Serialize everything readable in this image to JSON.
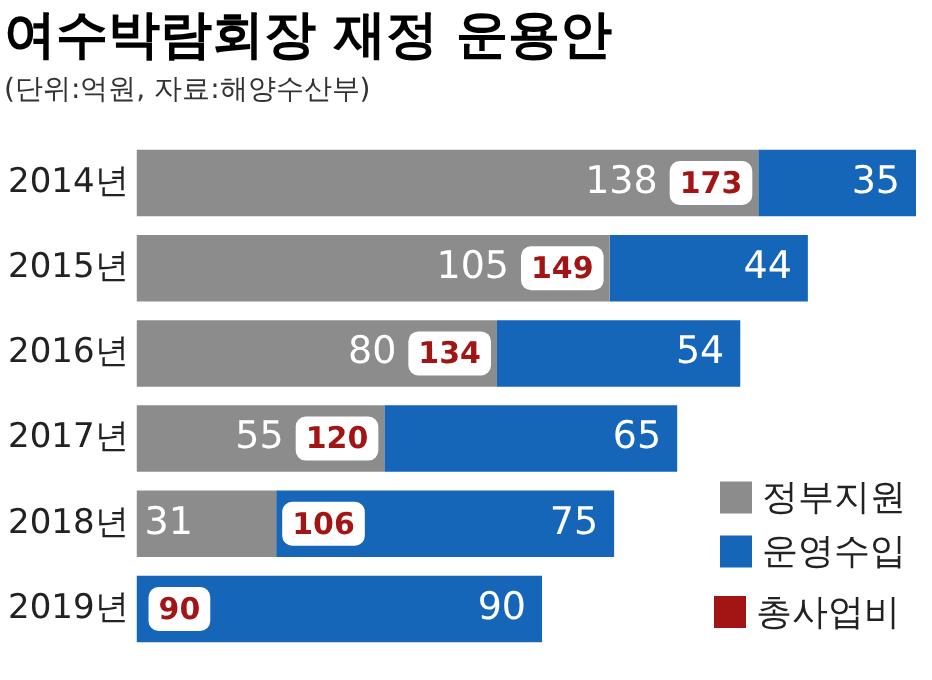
{
  "chart_data": {
    "type": "bar",
    "orientation": "horizontal",
    "stacked": true,
    "title": "여수박람회장 재정 운용안",
    "subtitle": "(단위:억원, 자료:해양수산부)",
    "categories": [
      "2014년",
      "2015년",
      "2016년",
      "2017년",
      "2018년",
      "2019년"
    ],
    "series": [
      {
        "name": "정부지원",
        "color": "#8c8c8c",
        "values": [
          138,
          105,
          80,
          55,
          31,
          null
        ]
      },
      {
        "name": "운영수입",
        "color": "#1565b8",
        "values": [
          35,
          44,
          54,
          65,
          75,
          90
        ]
      }
    ],
    "totals": [
      "173",
      "149",
      "134",
      "120",
      "106",
      "90"
    ],
    "annotations": [
      "총사업비"
    ],
    "data_labels": true,
    "legend": "bottom right",
    "grid": false,
    "tick_labels": "y"
  }
}
